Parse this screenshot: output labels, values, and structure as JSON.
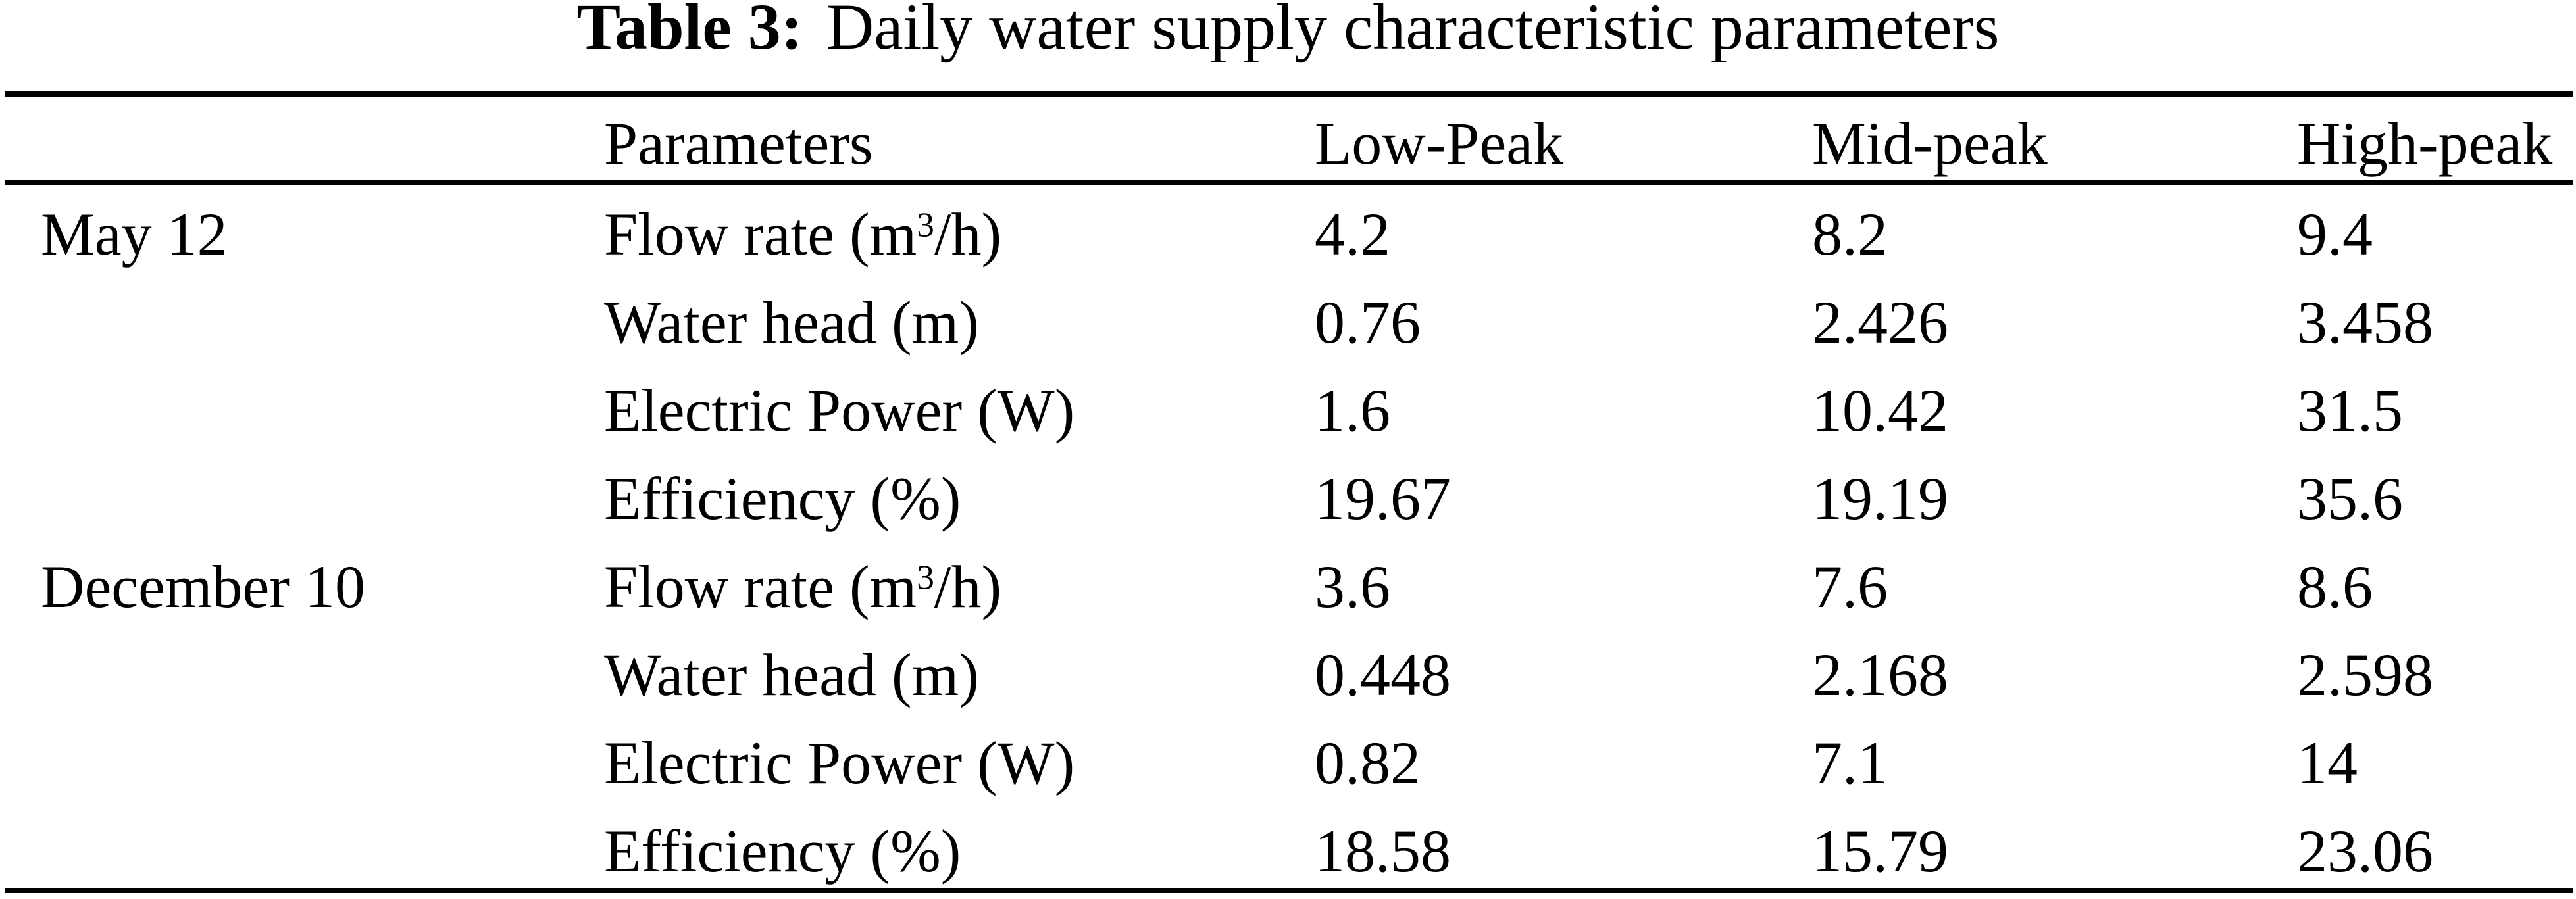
{
  "title": {
    "label": "Table 3:",
    "text": "Daily water supply characteristic parameters"
  },
  "table": {
    "header": {
      "parameter": "Parameters",
      "columns": [
        "Low-Peak",
        "Mid-peak",
        "High-peak"
      ]
    },
    "groups": [
      {
        "date": "May 12",
        "rows": [
          {
            "param_pre": "Flow rate (m",
            "param_sup": "3",
            "param_post": "/h)",
            "values": [
              "4.2",
              "8.2",
              "9.4"
            ]
          },
          {
            "param_pre": "Water head (m)",
            "param_sup": "",
            "param_post": "",
            "values": [
              "0.76",
              "2.426",
              "3.458"
            ]
          },
          {
            "param_pre": "Electric Power (W)",
            "param_sup": "",
            "param_post": "",
            "values": [
              "1.6",
              "10.42",
              "31.5"
            ]
          },
          {
            "param_pre": "Efficiency (%)",
            "param_sup": "",
            "param_post": "",
            "values": [
              "19.67",
              "19.19",
              "35.6"
            ]
          }
        ]
      },
      {
        "date": "December 10",
        "rows": [
          {
            "param_pre": "Flow rate (m",
            "param_sup": "3",
            "param_post": "/h)",
            "values": [
              "3.6",
              "7.6",
              "8.6"
            ]
          },
          {
            "param_pre": "Water head (m)",
            "param_sup": "",
            "param_post": "",
            "values": [
              "0.448",
              "2.168",
              "2.598"
            ]
          },
          {
            "param_pre": "Electric Power (W)",
            "param_sup": "",
            "param_post": "",
            "values": [
              "0.82",
              "7.1",
              "14"
            ]
          },
          {
            "param_pre": "Efficiency (%)",
            "param_sup": "",
            "param_post": "",
            "values": [
              "18.58",
              "15.79",
              "23.06"
            ]
          }
        ]
      }
    ]
  },
  "colors": {
    "text": "#000000",
    "background": "#ffffff",
    "rule": "#000000"
  }
}
